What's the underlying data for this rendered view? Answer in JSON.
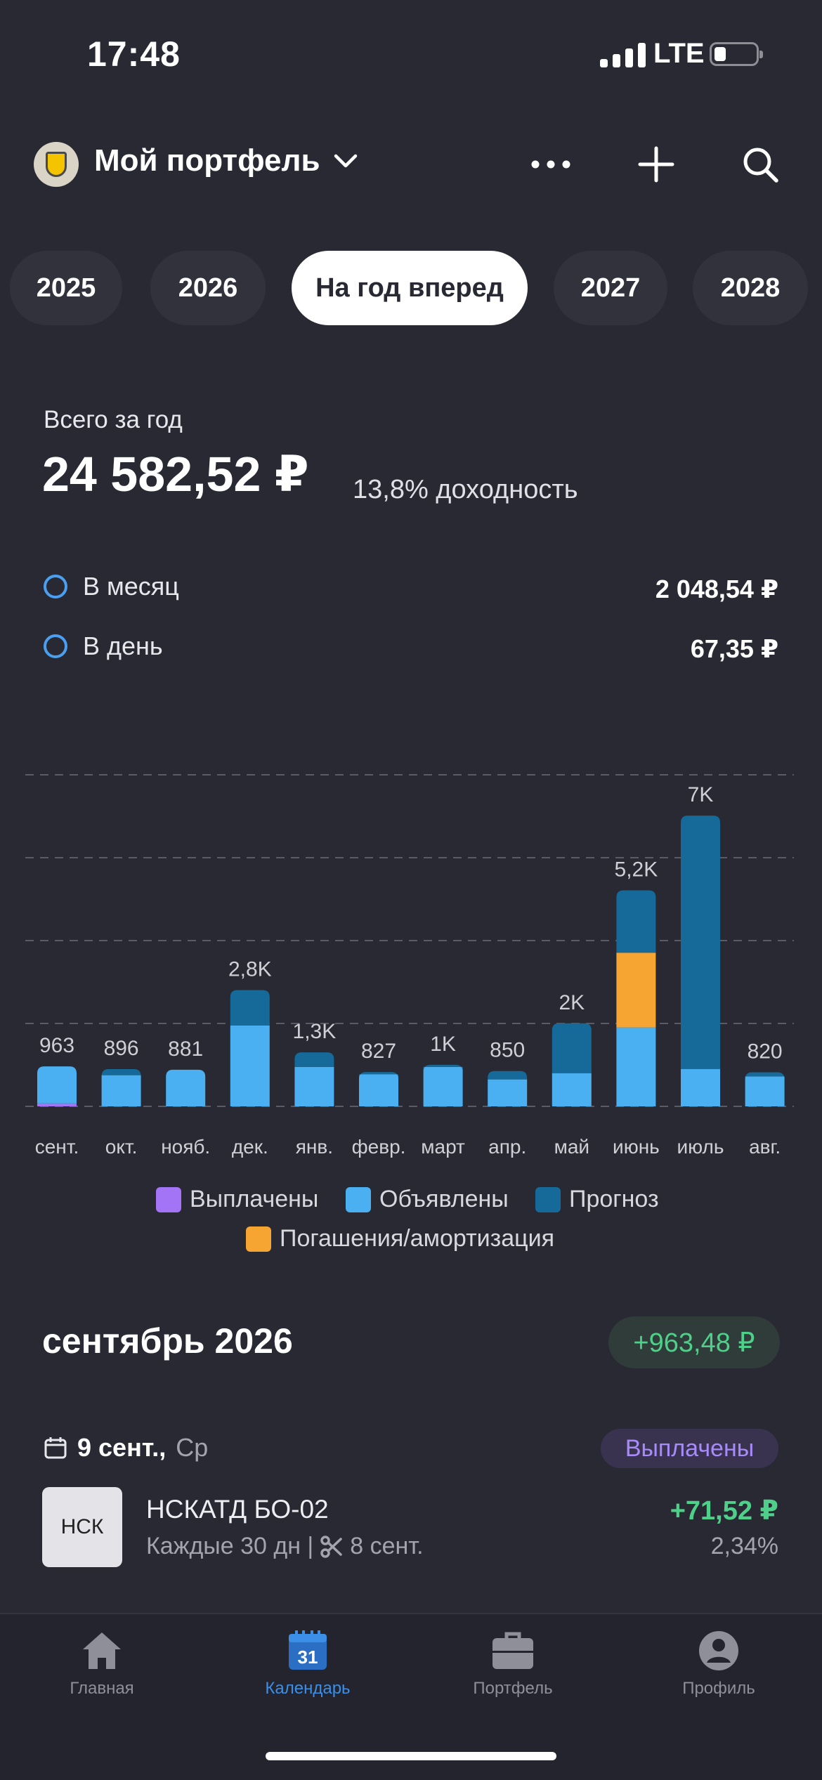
{
  "status": {
    "time": "17:48",
    "network": "LTE"
  },
  "header": {
    "title": "Мой портфель",
    "icons": [
      "chevron-down-icon",
      "more-icon",
      "plus-icon",
      "search-icon"
    ]
  },
  "years": [
    {
      "label": "2025",
      "active": false
    },
    {
      "label": "2026",
      "active": false
    },
    {
      "label": "На год вперед",
      "active": true
    },
    {
      "label": "2027",
      "active": false
    },
    {
      "label": "2028",
      "active": false
    }
  ],
  "summary": {
    "total_label": "Всего за год",
    "total_value": "24 582,52 ₽",
    "yield": "13,8% доходность",
    "month_label": "В месяц",
    "month_value": "2 048,54 ₽",
    "day_label": "В день",
    "day_value": "67,35 ₽"
  },
  "chart_data": {
    "type": "bar",
    "stacked": true,
    "categories": [
      "сент.",
      "окт.",
      "нояб.",
      "дек.",
      "янв.",
      "февр.",
      "март",
      "апр.",
      "май",
      "июнь",
      "июль",
      "авг."
    ],
    "data_labels": [
      "963",
      "896",
      "881",
      "2,8K",
      "1,3K",
      "827",
      "1K",
      "850",
      "2K",
      "5,2K",
      "7K",
      "820"
    ],
    "series": [
      {
        "name": "Выплачены",
        "color": "#a374f5",
        "values": [
          72,
          0,
          0,
          0,
          0,
          0,
          0,
          0,
          0,
          0,
          0,
          0
        ]
      },
      {
        "name": "Объявлены",
        "color": "#4ab0f2",
        "values": [
          891,
          750,
          881,
          1950,
          950,
          770,
          950,
          650,
          800,
          1900,
          900,
          720
        ]
      },
      {
        "name": "Прогноз",
        "color": "#156a99",
        "values": [
          0,
          146,
          0,
          850,
          350,
          57,
          50,
          200,
          1200,
          1500,
          6100,
          100
        ]
      },
      {
        "name": "Погашения/амортизация",
        "color": "#f6a533",
        "values": [
          0,
          0,
          0,
          0,
          0,
          0,
          0,
          0,
          0,
          1800,
          0,
          0
        ]
      }
    ],
    "ylim": [
      0,
      8000
    ],
    "grid": true,
    "legend": "bottom"
  },
  "month": {
    "title": "сентябрь 2026",
    "badge": "+963,48 ₽",
    "date": "9 сент.,",
    "weekday": "Ср",
    "status": "Выплачены",
    "bond": {
      "logo": "НСК",
      "name": "НСКАТД БО-02",
      "schedule": "Каждые 30 дн |",
      "cut_date": "8 сент.",
      "amount": "+71,52 ₽",
      "percent": "2,34%"
    }
  },
  "tabs": [
    {
      "label": "Главная",
      "icon": "home-icon",
      "active": false
    },
    {
      "label": "Календарь",
      "icon": "calendar-icon",
      "active": true,
      "icon_text": "31"
    },
    {
      "label": "Портфель",
      "icon": "briefcase-icon",
      "active": false
    },
    {
      "label": "Профиль",
      "icon": "profile-icon",
      "active": false
    }
  ]
}
